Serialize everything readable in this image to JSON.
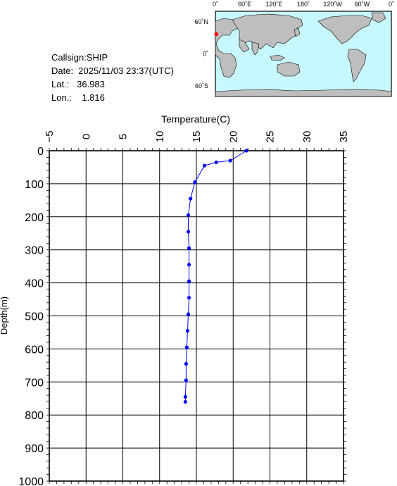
{
  "info": {
    "callsign": "Callsign:SHIP",
    "date": "Date:  2025/11/03 23:37(UTC)",
    "lat": "Lat.:   36.983",
    "lon": "Lon.:    1.816"
  },
  "map": {
    "top_labels": [
      "0˚",
      "60˚E",
      "120˚E",
      "180˚",
      "120˚W",
      "60˚W",
      "0˚"
    ],
    "left_labels": [
      "60˚N",
      "0˚",
      "60˚S"
    ],
    "ocean_color": "#c8f8ff",
    "land_color": "#bebebe",
    "marker_color": "#ff0000",
    "marker": {
      "lat": 36.983,
      "lon": 1.816
    }
  },
  "chart_data": {
    "type": "line",
    "xlabel": "Temperature(C)",
    "ylabel": "Depth(m)",
    "xlim": [
      -5,
      35
    ],
    "ylim": [
      0,
      1000
    ],
    "x_ticks": [
      "-5",
      "0",
      "5",
      "10",
      "15",
      "20",
      "25",
      "30",
      "35"
    ],
    "y_ticks": [
      "0",
      "100",
      "200",
      "300",
      "400",
      "500",
      "600",
      "700",
      "800",
      "900",
      "1000"
    ],
    "grid": true,
    "line_color": "#0000ff",
    "series": [
      {
        "temperature": [
          21.8,
          19.6,
          17.7,
          16.1,
          14.8,
          14.2,
          13.9,
          13.9,
          14.0,
          14.0,
          14.0,
          14.0,
          13.9,
          13.8,
          13.7,
          13.6,
          13.6,
          13.5,
          13.5
        ],
        "depth": [
          0,
          30,
          35,
          45,
          95,
          145,
          195,
          245,
          295,
          345,
          395,
          445,
          495,
          545,
          595,
          645,
          695,
          745,
          760
        ]
      }
    ]
  }
}
